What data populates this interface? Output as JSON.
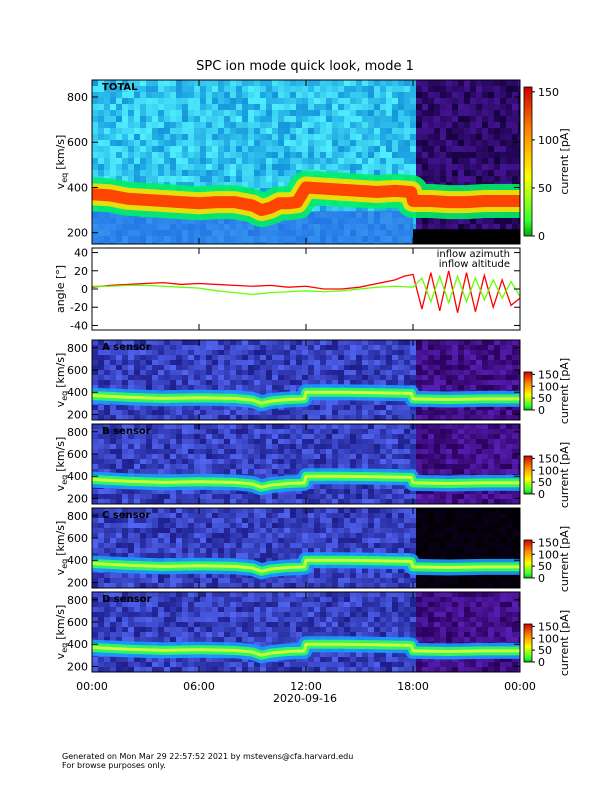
{
  "title": "SPC ion mode quick look, mode 1",
  "x_axis": {
    "xlim": [
      0,
      24
    ],
    "xticks": [
      {
        "value": 0,
        "label": "00:00"
      },
      {
        "value": 6,
        "label": "06:00"
      },
      {
        "value": 12,
        "label": "12:00"
      },
      {
        "value": 18,
        "label": "18:00"
      },
      {
        "value": 24,
        "label": "00:00"
      }
    ],
    "label": "2020-09-16"
  },
  "chart_data": [
    {
      "type": "heatmap",
      "label": "TOTAL",
      "y_label": {
        "symbol": "v",
        "subscript": "eq",
        "unit": "[km/s]"
      },
      "ylim": [
        150,
        875
      ],
      "yticks": [
        200,
        400,
        600,
        800
      ],
      "colorbar": {
        "lim": [
          0,
          155
        ],
        "ticks": [
          0,
          50,
          100,
          150
        ],
        "label": "current [pA]"
      },
      "peak": {
        "x": [
          0,
          1,
          2,
          3,
          4,
          5,
          6,
          7,
          8,
          9,
          9.5,
          10,
          10.5,
          11,
          11.5,
          12,
          13,
          14,
          15,
          16,
          17,
          17.9,
          18,
          19,
          20,
          21,
          22,
          23,
          24
        ],
        "values": [
          370,
          365,
          350,
          345,
          340,
          335,
          330,
          335,
          335,
          320,
          300,
          310,
          330,
          330,
          335,
          400,
          395,
          390,
          385,
          380,
          385,
          380,
          340,
          340,
          335,
          335,
          340,
          340,
          340
        ]
      }
    },
    {
      "type": "line",
      "y_label": "angle [°]",
      "ylim": [
        -45,
        45
      ],
      "yticks": [
        -40,
        -20,
        0,
        20,
        40
      ],
      "series": [
        {
          "name": "inflow azimuth",
          "color": "#ff0000",
          "x": [
            0,
            1,
            2,
            3,
            4,
            5,
            6,
            7,
            8,
            9,
            10,
            11,
            12,
            13,
            14,
            15,
            16,
            17,
            17.5,
            18,
            18.5,
            19,
            19.5,
            20,
            20.5,
            21,
            21.5,
            22,
            22.5,
            23,
            23.5,
            24
          ],
          "values": [
            2,
            4,
            5,
            6,
            7,
            5,
            6,
            5,
            4,
            3,
            4,
            2,
            3,
            0,
            0,
            2,
            6,
            10,
            14,
            16,
            -22,
            18,
            -24,
            20,
            -26,
            18,
            -25,
            15,
            -20,
            10,
            -18,
            -10
          ]
        },
        {
          "name": "inflow altitude",
          "color": "#66ff00",
          "x": [
            0,
            1,
            2,
            3,
            4,
            5,
            6,
            7,
            8,
            9,
            10,
            11,
            12,
            13,
            14,
            15,
            16,
            17,
            18,
            18.5,
            19,
            19.5,
            20,
            20.5,
            21,
            21.5,
            22,
            22.5,
            23,
            23.5,
            24
          ],
          "values": [
            3,
            3,
            4,
            4,
            3,
            2,
            1,
            -2,
            -4,
            -6,
            -4,
            -3,
            -2,
            -3,
            -2,
            0,
            2,
            3,
            2,
            12,
            -14,
            14,
            -15,
            14,
            -14,
            12,
            -12,
            10,
            -10,
            8,
            -8
          ]
        }
      ],
      "legend": "top right"
    },
    {
      "type": "heatmap",
      "label": "A sensor",
      "y_label": {
        "symbol": "v",
        "subscript": "eq",
        "unit": "[km/s]"
      },
      "ylim": [
        150,
        870
      ],
      "yticks": [
        200,
        400,
        600,
        800
      ],
      "colorbar": {
        "lim": [
          0,
          160
        ],
        "ticks": [
          0,
          50,
          100,
          150
        ],
        "label": "current [pA]"
      },
      "peak": {
        "x": [
          0,
          2,
          4,
          6,
          8,
          9,
          9.5,
          10,
          11,
          11.9,
          12,
          14,
          16,
          17.9,
          18,
          20,
          22,
          24
        ],
        "values": [
          370,
          355,
          345,
          350,
          345,
          330,
          300,
          320,
          335,
          340,
          400,
          400,
          395,
          390,
          340,
          335,
          340,
          340
        ]
      }
    },
    {
      "type": "heatmap",
      "label": "B sensor",
      "y_label": {
        "symbol": "v",
        "subscript": "eq",
        "unit": "[km/s]"
      },
      "ylim": [
        150,
        870
      ],
      "yticks": [
        200,
        400,
        600,
        800
      ],
      "colorbar": {
        "lim": [
          0,
          160
        ],
        "ticks": [
          0,
          50,
          100,
          150
        ],
        "label": "current [pA]"
      },
      "peak": {
        "x": [
          0,
          2,
          4,
          6,
          8,
          9,
          9.5,
          10,
          11,
          11.9,
          12,
          14,
          16,
          17.9,
          18,
          20,
          22,
          24
        ],
        "values": [
          370,
          355,
          345,
          350,
          345,
          330,
          300,
          320,
          335,
          340,
          400,
          400,
          395,
          390,
          340,
          335,
          340,
          340
        ]
      }
    },
    {
      "type": "heatmap",
      "label": "C sensor",
      "y_label": {
        "symbol": "v",
        "subscript": "eq",
        "unit": "[km/s]"
      },
      "ylim": [
        150,
        870
      ],
      "yticks": [
        200,
        400,
        600,
        800
      ],
      "colorbar": {
        "lim": [
          0,
          160
        ],
        "ticks": [
          0,
          50,
          100,
          150
        ],
        "label": "current [pA]"
      },
      "peak": {
        "x": [
          0,
          2,
          4,
          6,
          8,
          9,
          9.5,
          10,
          11,
          11.9,
          12,
          14,
          16,
          17.9,
          18,
          20,
          22,
          24
        ],
        "values": [
          370,
          355,
          345,
          350,
          345,
          330,
          300,
          320,
          335,
          340,
          400,
          400,
          395,
          390,
          340,
          335,
          340,
          340
        ]
      }
    },
    {
      "type": "heatmap",
      "label": "D sensor",
      "y_label": {
        "symbol": "v",
        "subscript": "eq",
        "unit": "[km/s]"
      },
      "ylim": [
        150,
        870
      ],
      "yticks": [
        200,
        400,
        600,
        800
      ],
      "colorbar": {
        "lim": [
          0,
          160
        ],
        "ticks": [
          0,
          50,
          100,
          150
        ],
        "label": "current [pA]"
      },
      "peak": {
        "x": [
          0,
          2,
          4,
          6,
          8,
          9,
          9.5,
          10,
          11,
          11.9,
          12,
          14,
          16,
          17.9,
          18,
          20,
          22,
          24
        ],
        "values": [
          370,
          355,
          345,
          350,
          345,
          330,
          300,
          320,
          335,
          340,
          400,
          400,
          395,
          390,
          340,
          335,
          340,
          340
        ]
      }
    }
  ],
  "footer": [
    "Generated on Mon Mar 29 22:57:52 2021 by mstevens@cfa.harvard.edu",
    "For browse purposes only."
  ]
}
